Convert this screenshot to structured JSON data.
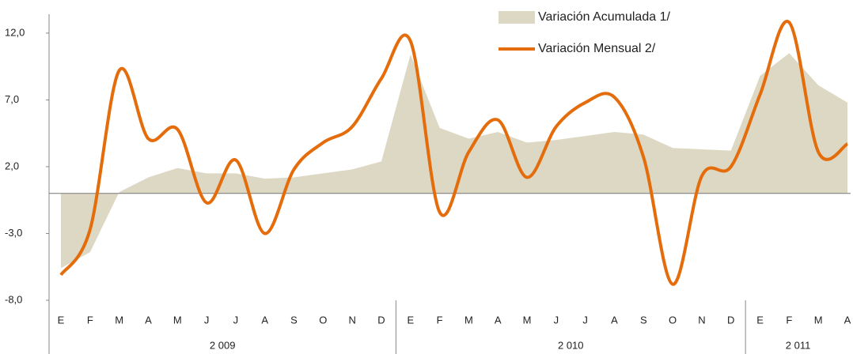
{
  "chart_data": {
    "type": "line",
    "categories": [
      "E",
      "F",
      "M",
      "A",
      "M",
      "J",
      "J",
      "A",
      "S",
      "O",
      "N",
      "D",
      "E",
      "F",
      "M",
      "A",
      "M",
      "J",
      "J",
      "A",
      "S",
      "O",
      "N",
      "D",
      "E",
      "F",
      "M",
      "A"
    ],
    "groups": [
      {
        "label": "2 009",
        "size": 12
      },
      {
        "label": "2 010",
        "size": 12
      },
      {
        "label": "2 011",
        "size": 4
      }
    ],
    "series": [
      {
        "name": "Variación Acumulada 1/",
        "kind": "area",
        "color": "#ddd8c4",
        "values": [
          -5.6,
          -4.4,
          0.1,
          1.2,
          1.9,
          1.5,
          1.5,
          1.1,
          1.2,
          1.5,
          1.8,
          2.4,
          10.4,
          4.9,
          4.1,
          4.6,
          3.8,
          4.0,
          4.3,
          4.6,
          4.4,
          3.4,
          3.3,
          3.2,
          8.8,
          10.5,
          8.1,
          6.8
        ]
      },
      {
        "name": "Variación Mensual 2/",
        "kind": "line",
        "color": "#e46c0a",
        "values": [
          -6.1,
          -2.7,
          9.2,
          4.1,
          4.8,
          -0.7,
          2.5,
          -3.0,
          1.8,
          3.8,
          5.0,
          8.6,
          11.4,
          -1.4,
          3.1,
          5.5,
          1.2,
          5.0,
          6.8,
          7.2,
          2.7,
          -6.8,
          1.3,
          2.0,
          7.4,
          12.8,
          3.1,
          3.7
        ]
      }
    ],
    "ylim": [
      -8,
      13
    ],
    "yticks": [
      {
        "value": -8,
        "label": "-8,0"
      },
      {
        "value": -3,
        "label": "-3,0"
      },
      {
        "value": 2,
        "label": "2,0"
      },
      {
        "value": 7,
        "label": "7,0"
      },
      {
        "value": 12,
        "label": "12,0"
      }
    ],
    "legend": "top-right"
  }
}
